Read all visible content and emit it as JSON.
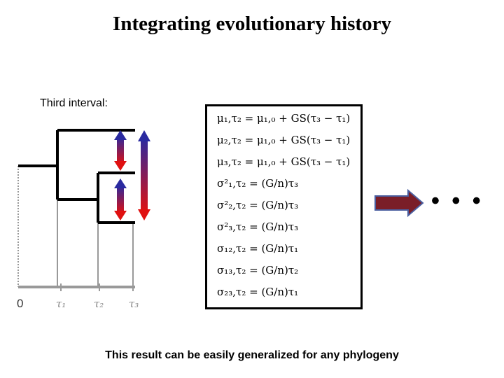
{
  "title": "Integrating evolutionary history",
  "subtitle": "Third interval:",
  "footer": "This result can be easily generalized for any phylogeny",
  "axis": {
    "origin_label": "0",
    "tick_labels": [
      "τ₁",
      "τ₂",
      "τ₃"
    ]
  },
  "equations": [
    "μ₁,τ₂ = μ₁,₀ + GS(τ₃ − τ₁)",
    "μ₂,τ₂ = μ₁,₀ + GS(τ₃ − τ₁)",
    "μ₃,τ₂ = μ₁,₀ + GS(τ₃ − τ₁)",
    "σ²₁,τ₂ = (G/n)τ₃",
    "σ²₂,τ₂ = (G/n)τ₃",
    "σ²₃,τ₂ = (G/n)τ₃",
    "σ₁₂,τ₂ = (G/n)τ₁",
    "σ₁₃,τ₂ = (G/n)τ₂",
    "σ₂₃,τ₂ = (G/n)τ₁"
  ],
  "ellipsis": "• • •",
  "colors": {
    "arrow_top": "#e01010",
    "arrow_bottom": "#2020a0",
    "big_arrow_fill": "#7a1e28",
    "big_arrow_stroke": "#4a5fa0"
  }
}
